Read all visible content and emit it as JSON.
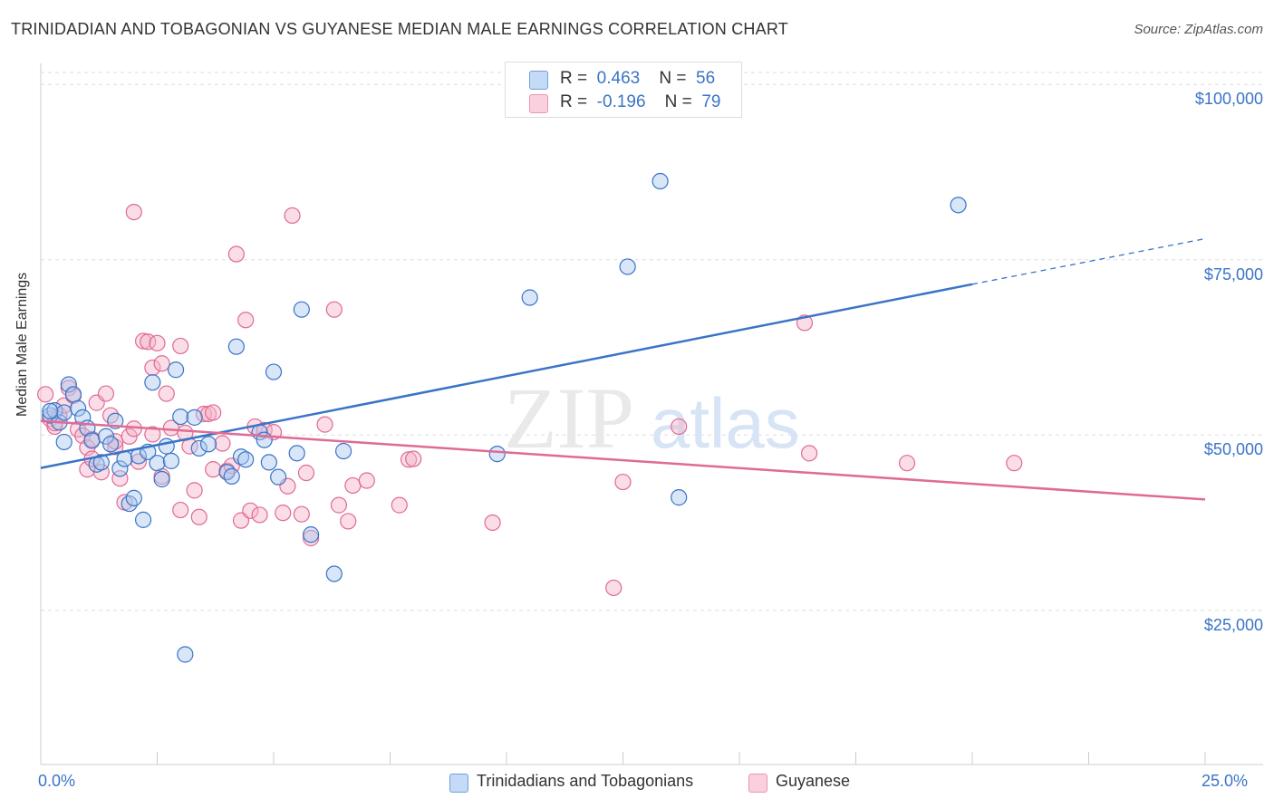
{
  "header": {
    "title": "TRINIDADIAN AND TOBAGONIAN VS GUYANESE MEDIAN MALE EARNINGS CORRELATION CHART",
    "source": "Source: ZipAtlas.com"
  },
  "watermark": {
    "zip": "ZIP",
    "atlas": "atlas"
  },
  "colors": {
    "blue": "#3a74c7",
    "blue_fill": "#a9c8f0",
    "pink": "#e06a96",
    "pink_fill": "#f5b3c8",
    "grid": "#dddddd"
  },
  "legend_top": {
    "rows": [
      {
        "r_label": "R =",
        "r_value": "0.463",
        "n_label": "N =",
        "n_value": "56",
        "color": "blue"
      },
      {
        "r_label": "R =",
        "r_value": "-0.196",
        "n_label": "N =",
        "n_value": "79",
        "color": "pink"
      }
    ]
  },
  "chart_data": {
    "type": "scatter",
    "title": "TRINIDADIAN AND TOBAGONIAN VS GUYANESE MEDIAN MALE EARNINGS CORRELATION CHART",
    "xlabel": "",
    "ylabel": "Median Male Earnings",
    "xlim": [
      0,
      25
    ],
    "ylim": [
      3000,
      103000
    ],
    "x_tick_labels": [
      "0.0%",
      "25.0%"
    ],
    "y_ticks": [
      25000,
      50000,
      75000,
      100000
    ],
    "y_tick_labels": [
      "$25,000",
      "$50,000",
      "$75,000",
      "$100,000"
    ],
    "grid": true,
    "legend_position": "bottom",
    "series": [
      {
        "name": "Trinidadians and Tobagonians",
        "color": "blue",
        "trend": {
          "x0": 0,
          "y0": 45300,
          "x1": 20,
          "y1": 71500,
          "dashed_to_x": 25,
          "dashed_to_y": 78000
        },
        "points": [
          [
            0.2,
            52800
          ],
          [
            0.3,
            53500
          ],
          [
            0.4,
            51800
          ],
          [
            0.5,
            49000
          ],
          [
            0.5,
            53200
          ],
          [
            0.6,
            57200
          ],
          [
            0.7,
            55800
          ],
          [
            0.8,
            53800
          ],
          [
            0.9,
            52500
          ],
          [
            1.0,
            51000
          ],
          [
            1.1,
            49200
          ],
          [
            1.2,
            45800
          ],
          [
            1.3,
            46100
          ],
          [
            1.4,
            49800
          ],
          [
            1.5,
            48700
          ],
          [
            1.6,
            52000
          ],
          [
            1.7,
            45200
          ],
          [
            1.8,
            46600
          ],
          [
            1.9,
            40200
          ],
          [
            2.0,
            41000
          ],
          [
            2.1,
            47000
          ],
          [
            2.2,
            37900
          ],
          [
            2.3,
            47600
          ],
          [
            2.4,
            57500
          ],
          [
            2.5,
            46000
          ],
          [
            2.6,
            43700
          ],
          [
            2.7,
            48400
          ],
          [
            2.8,
            46300
          ],
          [
            2.9,
            59300
          ],
          [
            3.0,
            52600
          ],
          [
            3.1,
            18700
          ],
          [
            3.3,
            52500
          ],
          [
            3.4,
            48100
          ],
          [
            3.6,
            48700
          ],
          [
            4.0,
            44700
          ],
          [
            4.1,
            44100
          ],
          [
            4.2,
            62600
          ],
          [
            4.3,
            46900
          ],
          [
            4.4,
            46500
          ],
          [
            4.7,
            50400
          ],
          [
            4.8,
            49300
          ],
          [
            4.9,
            46100
          ],
          [
            5.0,
            59000
          ],
          [
            5.1,
            44000
          ],
          [
            5.5,
            47400
          ],
          [
            5.6,
            67900
          ],
          [
            5.8,
            35800
          ],
          [
            6.3,
            30200
          ],
          [
            6.5,
            47700
          ],
          [
            9.8,
            47300
          ],
          [
            10.5,
            69600
          ],
          [
            12.6,
            74000
          ],
          [
            13.3,
            86200
          ],
          [
            13.7,
            41100
          ],
          [
            19.7,
            82800
          ],
          [
            0.2,
            53400
          ]
        ]
      },
      {
        "name": "Guyanese",
        "color": "pink",
        "trend": {
          "x0": 0,
          "y0": 52000,
          "x1": 25,
          "y1": 40800
        },
        "points": [
          [
            0.1,
            55800
          ],
          [
            0.2,
            52300
          ],
          [
            0.3,
            51200
          ],
          [
            0.4,
            52800
          ],
          [
            0.5,
            54200
          ],
          [
            0.6,
            56700
          ],
          [
            0.7,
            55600
          ],
          [
            0.8,
            50800
          ],
          [
            0.9,
            49900
          ],
          [
            1.0,
            48200
          ],
          [
            1.0,
            45100
          ],
          [
            1.1,
            46600
          ],
          [
            1.2,
            54600
          ],
          [
            1.3,
            44700
          ],
          [
            1.4,
            55900
          ],
          [
            1.5,
            52800
          ],
          [
            1.6,
            48300
          ],
          [
            1.6,
            49100
          ],
          [
            1.7,
            43800
          ],
          [
            1.8,
            40400
          ],
          [
            1.9,
            49800
          ],
          [
            2.0,
            50900
          ],
          [
            2.0,
            81800
          ],
          [
            2.1,
            46200
          ],
          [
            2.2,
            63400
          ],
          [
            2.3,
            63300
          ],
          [
            2.4,
            59600
          ],
          [
            2.5,
            63100
          ],
          [
            2.6,
            60200
          ],
          [
            2.6,
            44100
          ],
          [
            2.7,
            55900
          ],
          [
            2.8,
            51000
          ],
          [
            3.0,
            39300
          ],
          [
            3.0,
            62700
          ],
          [
            3.1,
            50300
          ],
          [
            3.2,
            48400
          ],
          [
            3.3,
            42100
          ],
          [
            3.4,
            38300
          ],
          [
            3.5,
            53000
          ],
          [
            3.6,
            53000
          ],
          [
            3.7,
            45100
          ],
          [
            3.9,
            48800
          ],
          [
            4.0,
            44900
          ],
          [
            4.1,
            45600
          ],
          [
            4.2,
            75800
          ],
          [
            4.3,
            37800
          ],
          [
            4.4,
            66400
          ],
          [
            4.5,
            39200
          ],
          [
            4.6,
            51200
          ],
          [
            4.7,
            38600
          ],
          [
            4.8,
            50700
          ],
          [
            5.0,
            50400
          ],
          [
            5.2,
            38900
          ],
          [
            5.3,
            42700
          ],
          [
            5.4,
            81300
          ],
          [
            5.6,
            38700
          ],
          [
            5.7,
            44600
          ],
          [
            5.8,
            35300
          ],
          [
            6.1,
            51500
          ],
          [
            6.3,
            67900
          ],
          [
            6.4,
            40000
          ],
          [
            6.6,
            37700
          ],
          [
            6.7,
            42800
          ],
          [
            7.0,
            43500
          ],
          [
            7.7,
            40000
          ],
          [
            7.9,
            46500
          ],
          [
            8.0,
            46600
          ],
          [
            9.7,
            37500
          ],
          [
            12.3,
            28200
          ],
          [
            12.5,
            43300
          ],
          [
            13.7,
            51200
          ],
          [
            16.4,
            66000
          ],
          [
            16.5,
            47400
          ],
          [
            18.6,
            46000
          ],
          [
            20.9,
            46000
          ],
          [
            0.3,
            51700
          ],
          [
            1.1,
            49400
          ],
          [
            2.4,
            50100
          ],
          [
            3.7,
            53200
          ]
        ]
      }
    ]
  },
  "bottom_legend": {
    "items": [
      {
        "label": "Trinidadians and Tobagonians",
        "color": "blue"
      },
      {
        "label": "Guyanese",
        "color": "pink"
      }
    ]
  }
}
